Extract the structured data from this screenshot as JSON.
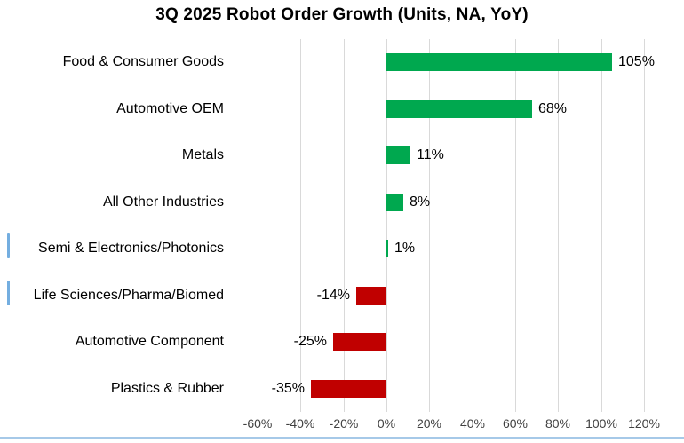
{
  "chart_data": {
    "type": "bar",
    "orientation": "horizontal",
    "title": "3Q 2025 Robot Order Growth (Units, NA, YoY)",
    "categories": [
      "Food & Consumer Goods",
      "Automotive OEM",
      "Metals",
      "All Other Industries",
      "Semi & Electronics/Photonics",
      "Life Sciences/Pharma/Biomed",
      "Automotive Component",
      "Plastics & Rubber"
    ],
    "values": [
      105,
      68,
      11,
      8,
      1,
      -14,
      -25,
      -35
    ],
    "value_labels": [
      "105%",
      "68%",
      "11%",
      "8%",
      "1%",
      "-14%",
      "-25%",
      "-35%"
    ],
    "x_tick_values": [
      -60,
      -40,
      -20,
      0,
      20,
      40,
      60,
      80,
      100,
      120
    ],
    "x_tick_labels": [
      "-60%",
      "-40%",
      "-20%",
      "0%",
      "20%",
      "40%",
      "60%",
      "80%",
      "100%",
      "120%"
    ],
    "xlim": [
      -60,
      120
    ],
    "grid": "vertical",
    "legend": "none",
    "colors": {
      "positive_bar": "#00A84F",
      "negative_bar": "#C00000",
      "gridline": "#D9D9D9",
      "axis_text": "#404040",
      "category_text": "#000000",
      "value_text": "#000000",
      "title_text": "#000000",
      "bottom_line": "#A6C9E8",
      "edge_marker": "#74AEE0"
    },
    "left_edge_marker_rows": [
      4,
      5
    ]
  }
}
